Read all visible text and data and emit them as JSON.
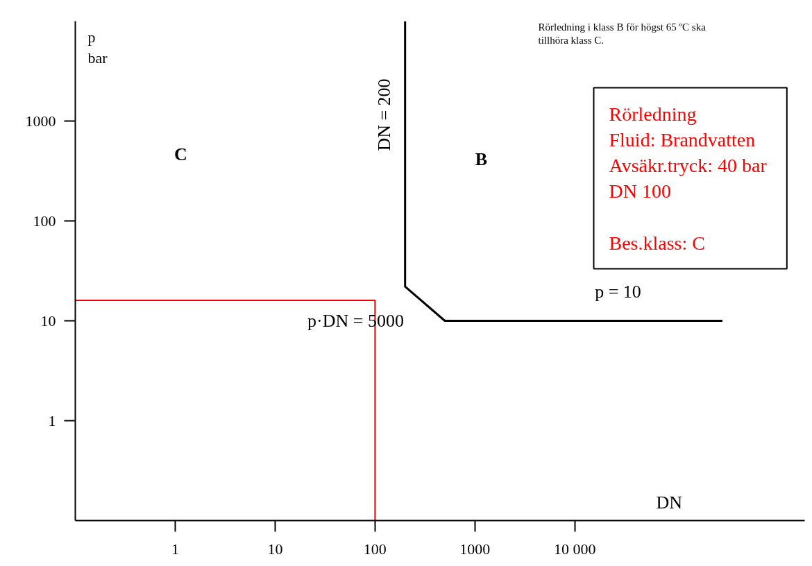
{
  "chart_data": {
    "type": "line",
    "xlabel": "DN",
    "ylabel": "p\nbar",
    "log": "xy",
    "grid": false,
    "marker": "none",
    "line_style": "solid",
    "xlim": [
      0.1,
      2000000
    ],
    "ylim": [
      0.1,
      10000
    ],
    "xticks": [
      1,
      10,
      100,
      1000,
      {
        "value": 10000,
        "label": "10 000"
      }
    ],
    "yticks": [
      1,
      10,
      100,
      1000
    ],
    "series": [
      {
        "color": "#000000",
        "x": [
          200,
          200,
          500,
          300000
        ],
        "values": [
          10000,
          22,
          10,
          10
        ]
      },
      {
        "color": "#ff0000",
        "x": [
          0.1,
          100,
          100
        ],
        "values": [
          16,
          16,
          0.1
        ]
      }
    ],
    "annotations": [
      "Rörledning i klass B för högst 65 ºC ska\ntillhöra klass C.",
      "Rörledning\nFluid: Brandvatten\nAvsäkr.tryck:  40 bar\nDN 100\n\nBes.klass:  C",
      "C",
      "B",
      "DN = 200",
      "p·DN = 5000",
      "p = 10"
    ]
  }
}
